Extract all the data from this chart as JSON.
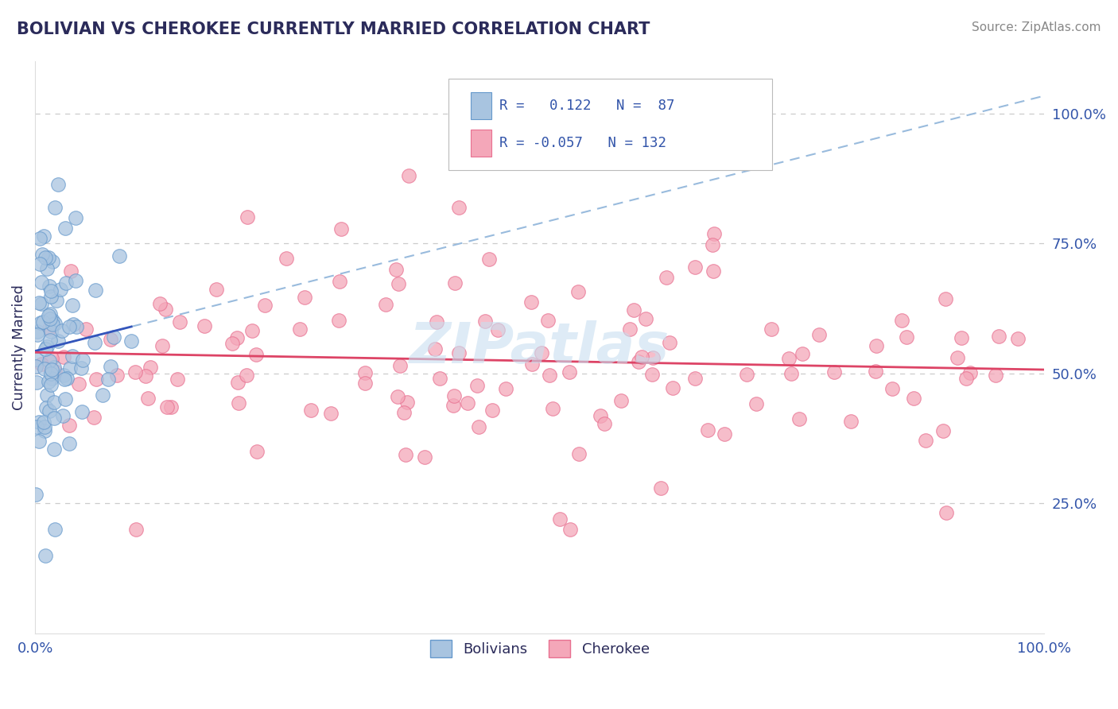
{
  "title": "BOLIVIAN VS CHEROKEE CURRENTLY MARRIED CORRELATION CHART",
  "source_text": "Source: ZipAtlas.com",
  "ylabel": "Currently Married",
  "xlim": [
    0.0,
    1.0
  ],
  "ylim": [
    0.0,
    1.1
  ],
  "bolivian_color": "#a8c4e0",
  "cherokee_color": "#f4a7b9",
  "bolivian_edge": "#6699cc",
  "cherokee_edge": "#e87090",
  "trend_blue_solid": "#3355bb",
  "trend_blue_dashed": "#99bbdd",
  "trend_pink": "#dd4466",
  "legend_r_blue": "0.122",
  "legend_n_blue": "87",
  "legend_r_pink": "-0.057",
  "legend_n_pink": "132",
  "R_blue": 0.122,
  "N_blue": 87,
  "R_pink": -0.057,
  "N_pink": 132,
  "background_color": "#ffffff",
  "grid_color": "#cccccc",
  "title_color": "#2b2b5a",
  "label_color": "#3355aa",
  "source_color": "#888888",
  "watermark": "ZIPatlas",
  "watermark_color": "#c8dff0"
}
